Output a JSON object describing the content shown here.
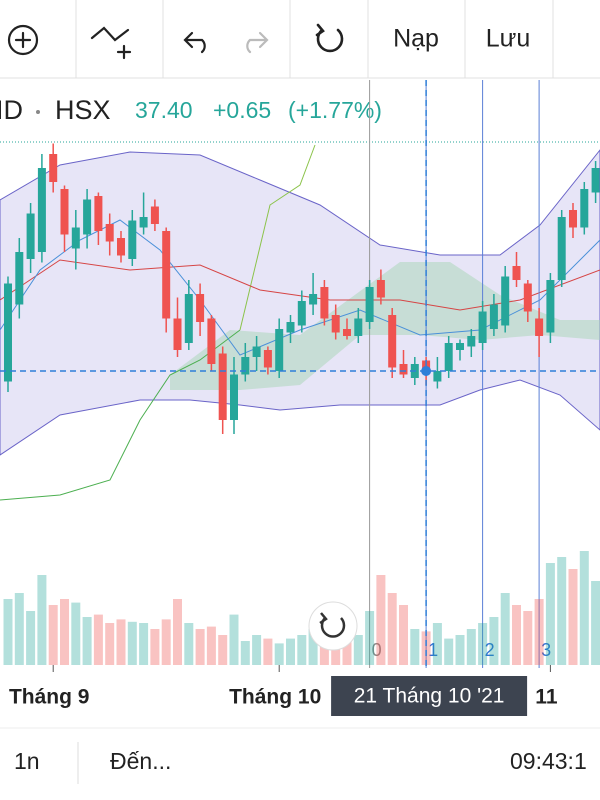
{
  "toolbar": {
    "load": "Nạp",
    "save": "Lưu"
  },
  "quote": {
    "symbol": "ID",
    "exchange": "HSX",
    "price": "37.40",
    "change": "+0.65",
    "change_pct": "(+1.77%)"
  },
  "chart_data": {
    "type": "candlestick",
    "ylim": [
      32,
      44
    ],
    "volume_lim": [
      0,
      100
    ],
    "up_color": "#26a69a",
    "down_color": "#ef5350",
    "categories": [
      null,
      null,
      null,
      null,
      "Tháng 9",
      null,
      null,
      null,
      null,
      null,
      null,
      null,
      null,
      null,
      null,
      null,
      null,
      null,
      null,
      null,
      null,
      null,
      null,
      null,
      "Tháng 10",
      null,
      null,
      null,
      null,
      null,
      null,
      null,
      null,
      null,
      null,
      null,
      null,
      null,
      null,
      null,
      null,
      null,
      null,
      null,
      null,
      null,
      null,
      null,
      "11",
      null,
      null,
      null,
      null
    ],
    "open": [
      37.1,
      39.3,
      40.6,
      40.8,
      43.6,
      42.6,
      40.9,
      41.3,
      42.4,
      41.6,
      41.2,
      40.6,
      41.5,
      42.1,
      41.4,
      38.9,
      38.2,
      39.6,
      38.9,
      37.9,
      36.0,
      37.3,
      37.8,
      38.0,
      37.4,
      38.5,
      38.7,
      39.3,
      39.8,
      39.0,
      38.6,
      38.4,
      38.8,
      40.0,
      39.0,
      37.6,
      37.2,
      37.7,
      37.1,
      37.4,
      38.0,
      38.1,
      38.2,
      38.6,
      38.7,
      40.4,
      39.9,
      38.9,
      38.5,
      40.0,
      42.0,
      41.5,
      42.5
    ],
    "high": [
      40.1,
      41.2,
      42.2,
      43.6,
      43.9,
      42.7,
      42.0,
      42.6,
      42.5,
      41.9,
      41.4,
      42.0,
      42.5,
      42.3,
      41.5,
      39.5,
      40.0,
      39.9,
      39.0,
      38.1,
      37.8,
      38.2,
      38.4,
      38.1,
      38.9,
      39.0,
      39.7,
      40.2,
      40.0,
      39.3,
      38.9,
      39.2,
      40.0,
      40.3,
      39.2,
      38.0,
      37.8,
      37.8,
      37.8,
      38.4,
      38.3,
      38.6,
      39.4,
      39.6,
      40.4,
      40.8,
      40.0,
      39.2,
      40.2,
      42.0,
      42.2,
      42.8,
      43.4
    ],
    "low": [
      36.8,
      38.9,
      40.2,
      40.5,
      42.5,
      40.8,
      40.3,
      40.9,
      41.0,
      40.7,
      40.5,
      40.4,
      41.3,
      41.4,
      38.5,
      37.8,
      38.0,
      38.4,
      37.4,
      35.6,
      35.6,
      37.1,
      37.4,
      37.3,
      37.2,
      38.2,
      38.5,
      39.0,
      38.7,
      38.3,
      38.3,
      38.2,
      38.6,
      39.3,
      37.2,
      37.2,
      37.0,
      37.0,
      36.9,
      37.2,
      37.7,
      37.8,
      38.0,
      38.4,
      38.5,
      39.8,
      38.8,
      37.8,
      38.2,
      39.8,
      41.2,
      41.3,
      42.2
    ],
    "close": [
      39.9,
      40.8,
      41.9,
      43.2,
      42.8,
      41.3,
      41.5,
      42.3,
      41.4,
      41.1,
      40.7,
      41.7,
      41.8,
      41.6,
      38.9,
      38.0,
      39.6,
      38.8,
      37.6,
      36.0,
      37.3,
      37.8,
      38.1,
      37.5,
      38.6,
      38.8,
      39.4,
      39.6,
      38.9,
      38.5,
      38.4,
      38.9,
      39.8,
      39.5,
      37.5,
      37.3,
      37.6,
      37.4,
      37.4,
      38.2,
      38.2,
      38.4,
      39.1,
      39.3,
      40.1,
      40.0,
      39.1,
      38.4,
      40.0,
      41.8,
      41.5,
      42.6,
      43.2
    ],
    "volume": [
      55,
      60,
      45,
      75,
      50,
      55,
      52,
      40,
      42,
      35,
      38,
      36,
      35,
      30,
      38,
      55,
      35,
      30,
      32,
      25,
      42,
      20,
      25,
      22,
      18,
      22,
      25,
      30,
      28,
      35,
      22,
      25,
      45,
      75,
      60,
      50,
      30,
      28,
      35,
      22,
      25,
      30,
      35,
      40,
      60,
      50,
      45,
      55,
      85,
      90,
      80,
      95,
      70
    ],
    "crosshair_label": "21 Tháng 10 '21",
    "markers": [
      "0",
      "1",
      "2",
      "3"
    ]
  },
  "footer": {
    "interval": "1n",
    "goto": "Đến...",
    "time": "09:43:1"
  }
}
